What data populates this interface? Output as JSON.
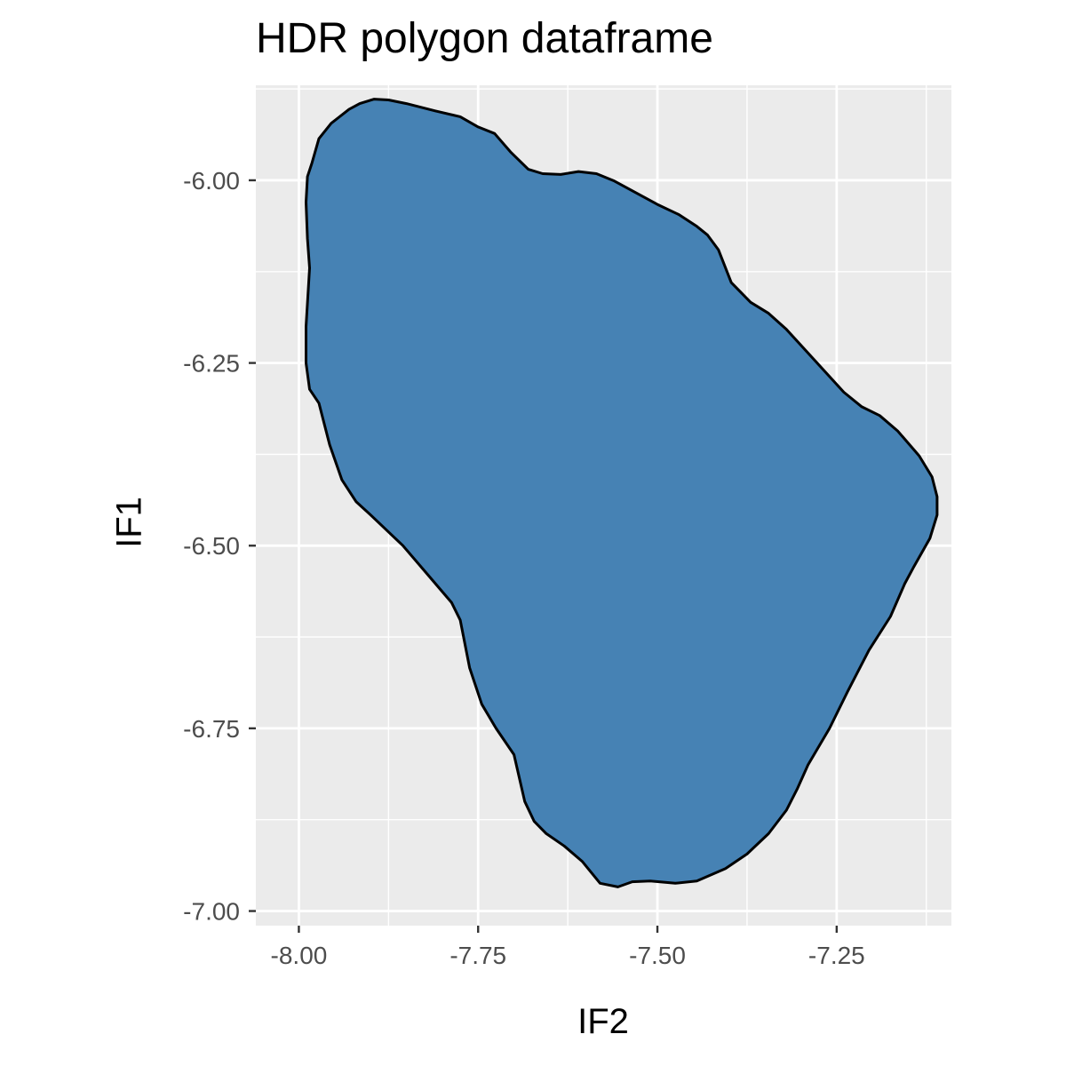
{
  "chart_data": {
    "type": "area",
    "title": "HDR polygon dataframe",
    "xlabel": "IF2",
    "ylabel": "IF1",
    "xlim": [
      -8.06,
      -7.09
    ],
    "ylim": [
      -7.02,
      -5.87
    ],
    "x_ticks": [
      -8.0,
      -7.75,
      -7.5,
      -7.25
    ],
    "x_tick_labels": [
      "-8.00",
      "-7.75",
      "-7.50",
      "-7.25"
    ],
    "y_ticks": [
      -6.0,
      -6.25,
      -6.5,
      -6.75,
      -7.0
    ],
    "y_tick_labels": [
      "-6.00",
      "-6.25",
      "-6.50",
      "-6.75",
      "-7.00"
    ],
    "grid": true,
    "legend": "none",
    "series": [
      {
        "fill": "#4682b4",
        "outline": "#000000",
        "points": [
          [
            -7.895,
            -5.889
          ],
          [
            -7.875,
            -5.89
          ],
          [
            -7.85,
            -5.895
          ],
          [
            -7.81,
            -5.905
          ],
          [
            -7.775,
            -5.913
          ],
          [
            -7.75,
            -5.927
          ],
          [
            -7.727,
            -5.936
          ],
          [
            -7.705,
            -5.961
          ],
          [
            -7.68,
            -5.985
          ],
          [
            -7.66,
            -5.991
          ],
          [
            -7.635,
            -5.992
          ],
          [
            -7.61,
            -5.988
          ],
          [
            -7.585,
            -5.991
          ],
          [
            -7.56,
            -6.001
          ],
          [
            -7.53,
            -6.017
          ],
          [
            -7.5,
            -6.033
          ],
          [
            -7.47,
            -6.047
          ],
          [
            -7.445,
            -6.063
          ],
          [
            -7.43,
            -6.075
          ],
          [
            -7.415,
            -6.095
          ],
          [
            -7.397,
            -6.14
          ],
          [
            -7.37,
            -6.167
          ],
          [
            -7.345,
            -6.182
          ],
          [
            -7.32,
            -6.204
          ],
          [
            -7.28,
            -6.247
          ],
          [
            -7.24,
            -6.29
          ],
          [
            -7.215,
            -6.31
          ],
          [
            -7.19,
            -6.322
          ],
          [
            -7.165,
            -6.343
          ],
          [
            -7.135,
            -6.377
          ],
          [
            -7.117,
            -6.406
          ],
          [
            -7.11,
            -6.433
          ],
          [
            -7.11,
            -6.458
          ],
          [
            -7.12,
            -6.49
          ],
          [
            -7.143,
            -6.53
          ],
          [
            -7.155,
            -6.552
          ],
          [
            -7.175,
            -6.597
          ],
          [
            -7.205,
            -6.643
          ],
          [
            -7.235,
            -6.7
          ],
          [
            -7.26,
            -6.75
          ],
          [
            -7.29,
            -6.8
          ],
          [
            -7.305,
            -6.833
          ],
          [
            -7.32,
            -6.862
          ],
          [
            -7.345,
            -6.894
          ],
          [
            -7.375,
            -6.922
          ],
          [
            -7.405,
            -6.942
          ],
          [
            -7.445,
            -6.959
          ],
          [
            -7.475,
            -6.962
          ],
          [
            -7.51,
            -6.959
          ],
          [
            -7.535,
            -6.96
          ],
          [
            -7.555,
            -6.967
          ],
          [
            -7.58,
            -6.962
          ],
          [
            -7.605,
            -6.932
          ],
          [
            -7.63,
            -6.911
          ],
          [
            -7.655,
            -6.894
          ],
          [
            -7.672,
            -6.877
          ],
          [
            -7.685,
            -6.85
          ],
          [
            -7.7,
            -6.786
          ],
          [
            -7.725,
            -6.75
          ],
          [
            -7.745,
            -6.717
          ],
          [
            -7.762,
            -6.667
          ],
          [
            -7.775,
            -6.602
          ],
          [
            -7.787,
            -6.578
          ],
          [
            -7.82,
            -6.54
          ],
          [
            -7.855,
            -6.5
          ],
          [
            -7.9,
            -6.458
          ],
          [
            -7.92,
            -6.44
          ],
          [
            -7.94,
            -6.41
          ],
          [
            -7.957,
            -6.362
          ],
          [
            -7.972,
            -6.305
          ],
          [
            -7.985,
            -6.286
          ],
          [
            -7.99,
            -6.25
          ],
          [
            -7.99,
            -6.2
          ],
          [
            -7.985,
            -6.12
          ],
          [
            -7.988,
            -6.08
          ],
          [
            -7.99,
            -6.03
          ],
          [
            -7.988,
            -5.995
          ],
          [
            -7.982,
            -5.977
          ],
          [
            -7.972,
            -5.943
          ],
          [
            -7.955,
            -5.922
          ],
          [
            -7.93,
            -5.903
          ],
          [
            -7.915,
            -5.895
          ]
        ]
      }
    ]
  }
}
